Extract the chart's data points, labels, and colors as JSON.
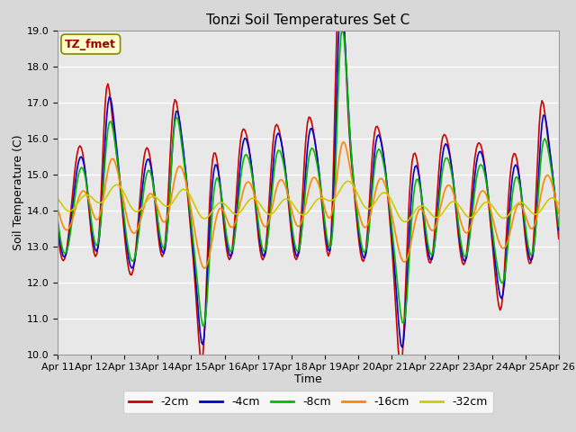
{
  "title": "Tonzi Soil Temperatures Set C",
  "xlabel": "Time",
  "ylabel": "Soil Temperature (C)",
  "ylim": [
    10.0,
    19.0
  ],
  "yticks": [
    10.0,
    11.0,
    12.0,
    13.0,
    14.0,
    15.0,
    16.0,
    17.0,
    18.0,
    19.0
  ],
  "xtick_labels": [
    "Apr 11",
    "Apr 12",
    "Apr 13",
    "Apr 14",
    "Apr 15",
    "Apr 16",
    "Apr 17",
    "Apr 18",
    "Apr 19",
    "Apr 20",
    "Apr 21",
    "Apr 22",
    "Apr 23",
    "Apr 24",
    "Apr 25",
    "Apr 26"
  ],
  "n_days": 15,
  "series_labels": [
    "-2cm",
    "-4cm",
    "-8cm",
    "-16cm",
    "-32cm"
  ],
  "series_colors": [
    "#cc0000",
    "#0000cc",
    "#00bb00",
    "#ff8800",
    "#cccc00"
  ],
  "legend_label": "TZ_fmet",
  "legend_box_facecolor": "#ffffcc",
  "legend_box_edgecolor": "#888800",
  "legend_text_color": "#990000",
  "fig_facecolor": "#d8d8d8",
  "plot_facecolor": "#e8e8e8",
  "grid_color": "#ffffff",
  "title_fontsize": 11,
  "axis_label_fontsize": 9,
  "tick_fontsize": 8,
  "linewidth": 1.2
}
